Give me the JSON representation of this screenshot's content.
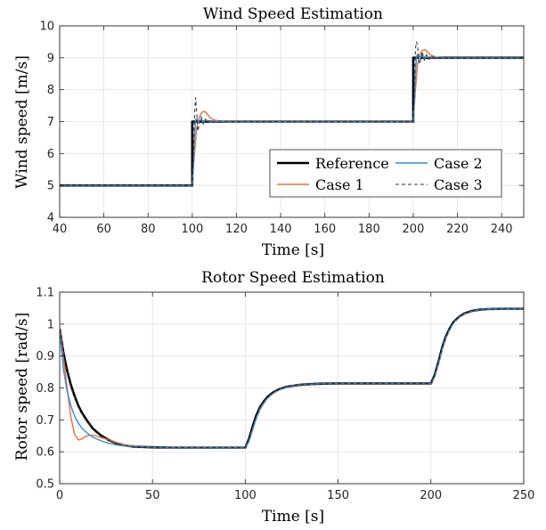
{
  "chart_data": [
    {
      "type": "line",
      "title": "Wind Speed Estimation",
      "xlabel": "Time [s]",
      "ylabel": "Wind speed [m/s]",
      "xlim": [
        40,
        250
      ],
      "ylim": [
        4,
        10
      ],
      "xticks": [
        40,
        60,
        80,
        100,
        120,
        140,
        160,
        180,
        200,
        220,
        240
      ],
      "yticks": [
        4,
        5,
        6,
        7,
        8,
        9,
        10
      ],
      "grid": true,
      "legend": {
        "placement": "lower-right",
        "columns": 2
      },
      "series": [
        {
          "name": "Reference",
          "color": "#000000",
          "style": "solid-thick",
          "x": [
            40,
            100,
            100,
            200,
            200,
            250
          ],
          "y": [
            5,
            5,
            7,
            7,
            9,
            9
          ]
        },
        {
          "name": "Case 1",
          "color": "#e8703a",
          "style": "solid",
          "x": [
            40,
            100,
            101,
            102,
            103,
            104,
            105,
            106,
            107,
            108,
            110,
            112,
            115,
            120,
            200,
            201,
            202,
            203,
            204,
            205,
            206,
            207,
            208,
            210,
            212,
            215,
            220,
            250
          ],
          "y": [
            5,
            5,
            6.0,
            6.8,
            7.1,
            7.25,
            7.32,
            7.3,
            7.22,
            7.12,
            7.05,
            7.02,
            7.0,
            7.0,
            7,
            8.0,
            8.8,
            9.1,
            9.22,
            9.25,
            9.22,
            9.15,
            9.08,
            9.03,
            9.01,
            9.0,
            9.0,
            9.0
          ]
        },
        {
          "name": "Case 2",
          "color": "#2f8fdc",
          "style": "solid",
          "x": [
            40,
            100,
            100.5,
            101,
            101.5,
            102,
            103,
            104,
            105,
            106,
            108,
            110,
            115,
            120,
            200,
            200.5,
            201,
            201.5,
            202,
            203,
            204,
            205,
            206,
            208,
            210,
            215,
            220,
            250
          ],
          "y": [
            5,
            5,
            5.6,
            6.5,
            7.05,
            7.1,
            6.95,
            7.08,
            6.98,
            7.04,
            7.0,
            7.01,
            7.0,
            7.0,
            7,
            7.6,
            8.5,
            9.05,
            9.1,
            8.96,
            9.08,
            8.98,
            9.03,
            9.0,
            9.01,
            9.0,
            9.0,
            9.0
          ]
        },
        {
          "name": "Case 3",
          "color": "#333333",
          "style": "dashed",
          "x": [
            40,
            100,
            100.5,
            101,
            101.5,
            102,
            102.5,
            103,
            104,
            105,
            106,
            107,
            108,
            110,
            112,
            115,
            120,
            200,
            200.5,
            201,
            201.5,
            202,
            202.5,
            203,
            204,
            205,
            206,
            207,
            208,
            210,
            212,
            215,
            220,
            250
          ],
          "y": [
            5,
            5,
            6.0,
            7.2,
            7.75,
            7.3,
            6.7,
            6.85,
            7.15,
            6.92,
            7.08,
            6.95,
            7.04,
            6.98,
            7.02,
            7.0,
            7.0,
            7,
            8.0,
            9.3,
            9.5,
            9.35,
            8.9,
            8.8,
            9.2,
            8.92,
            9.1,
            8.95,
            9.05,
            8.98,
            9.02,
            9.0,
            9.0,
            9.0
          ]
        }
      ]
    },
    {
      "type": "line",
      "title": "Rotor Speed Estimation",
      "xlabel": "Time [s]",
      "ylabel": "Rotor speed [rad/s]",
      "xlim": [
        0,
        250
      ],
      "ylim": [
        0.5,
        1.1
      ],
      "xticks": [
        0,
        50,
        100,
        150,
        200,
        250
      ],
      "yticks": [
        0.5,
        0.6,
        0.7,
        0.8,
        0.9,
        1,
        1.1
      ],
      "grid": true,
      "series": [
        {
          "name": "Reference",
          "color": "#000000",
          "style": "solid-thick",
          "x": [
            0,
            2,
            4,
            6,
            8,
            10,
            12,
            15,
            18,
            22,
            26,
            30,
            35,
            40,
            50,
            60,
            80,
            100,
            102,
            104,
            106,
            108,
            110,
            112,
            115,
            118,
            122,
            126,
            130,
            135,
            140,
            150,
            170,
            200,
            202,
            204,
            206,
            208,
            210,
            212,
            215,
            218,
            222,
            226,
            230,
            240,
            250
          ],
          "y": [
            0.985,
            0.91,
            0.855,
            0.81,
            0.775,
            0.745,
            0.722,
            0.695,
            0.672,
            0.652,
            0.638,
            0.628,
            0.62,
            0.616,
            0.614,
            0.613,
            0.613,
            0.613,
            0.64,
            0.68,
            0.715,
            0.74,
            0.758,
            0.772,
            0.786,
            0.795,
            0.803,
            0.807,
            0.81,
            0.812,
            0.813,
            0.814,
            0.814,
            0.814,
            0.84,
            0.88,
            0.925,
            0.96,
            0.985,
            1.005,
            1.022,
            1.033,
            1.041,
            1.045,
            1.047,
            1.048,
            1.048
          ]
        },
        {
          "name": "Case 1",
          "color": "#e8703a",
          "style": "solid",
          "x": [
            0,
            2,
            4,
            6,
            8,
            10,
            12,
            14,
            16,
            18,
            20,
            22,
            25,
            30,
            35,
            40,
            50,
            60,
            80,
            100,
            102,
            104,
            106,
            108,
            110,
            112,
            115,
            118,
            122,
            126,
            130,
            135,
            140,
            150,
            170,
            200,
            202,
            204,
            206,
            208,
            210,
            212,
            215,
            218,
            222,
            226,
            230,
            240,
            250
          ],
          "y": [
            0.99,
            0.9,
            0.8,
            0.71,
            0.655,
            0.637,
            0.64,
            0.648,
            0.652,
            0.652,
            0.649,
            0.645,
            0.64,
            0.63,
            0.622,
            0.617,
            0.614,
            0.613,
            0.613,
            0.613,
            0.632,
            0.67,
            0.706,
            0.733,
            0.752,
            0.768,
            0.783,
            0.793,
            0.802,
            0.807,
            0.81,
            0.812,
            0.813,
            0.814,
            0.814,
            0.814,
            0.835,
            0.875,
            0.92,
            0.955,
            0.982,
            1.002,
            1.02,
            1.032,
            1.04,
            1.045,
            1.047,
            1.048,
            1.048
          ]
        },
        {
          "name": "Case 2",
          "color": "#2f8fdc",
          "style": "solid",
          "x": [
            0,
            2,
            4,
            6,
            8,
            10,
            12,
            15,
            18,
            22,
            26,
            30,
            35,
            40,
            50,
            60,
            80,
            100,
            102,
            104,
            106,
            108,
            110,
            112,
            115,
            118,
            122,
            126,
            130,
            135,
            140,
            150,
            170,
            200,
            202,
            204,
            206,
            208,
            210,
            212,
            215,
            218,
            222,
            226,
            230,
            240,
            250
          ],
          "y": [
            0.98,
            0.86,
            0.79,
            0.745,
            0.712,
            0.69,
            0.674,
            0.658,
            0.645,
            0.635,
            0.627,
            0.622,
            0.618,
            0.616,
            0.614,
            0.613,
            0.613,
            0.613,
            0.635,
            0.672,
            0.708,
            0.735,
            0.754,
            0.769,
            0.784,
            0.794,
            0.802,
            0.807,
            0.81,
            0.812,
            0.813,
            0.814,
            0.814,
            0.814,
            0.836,
            0.876,
            0.921,
            0.957,
            0.983,
            1.003,
            1.021,
            1.032,
            1.04,
            1.045,
            1.047,
            1.048,
            1.048
          ]
        },
        {
          "name": "Case 3",
          "color": "#333333",
          "style": "dashed",
          "x": [
            0,
            2,
            4,
            6,
            8,
            10,
            12,
            15,
            18,
            22,
            26,
            30,
            35,
            40,
            50,
            60,
            80,
            100,
            102,
            104,
            106,
            108,
            110,
            112,
            115,
            118,
            122,
            126,
            130,
            135,
            140,
            150,
            170,
            200,
            202,
            204,
            206,
            208,
            210,
            212,
            215,
            218,
            222,
            226,
            230,
            240,
            250
          ],
          "y": [
            0.985,
            0.905,
            0.85,
            0.806,
            0.772,
            0.742,
            0.72,
            0.693,
            0.671,
            0.651,
            0.637,
            0.627,
            0.62,
            0.616,
            0.614,
            0.613,
            0.613,
            0.613,
            0.638,
            0.678,
            0.713,
            0.739,
            0.757,
            0.771,
            0.785,
            0.795,
            0.803,
            0.807,
            0.81,
            0.812,
            0.813,
            0.814,
            0.814,
            0.814,
            0.839,
            0.879,
            0.924,
            0.959,
            0.984,
            1.004,
            1.021,
            1.033,
            1.041,
            1.045,
            1.047,
            1.048,
            1.048
          ]
        }
      ]
    }
  ]
}
